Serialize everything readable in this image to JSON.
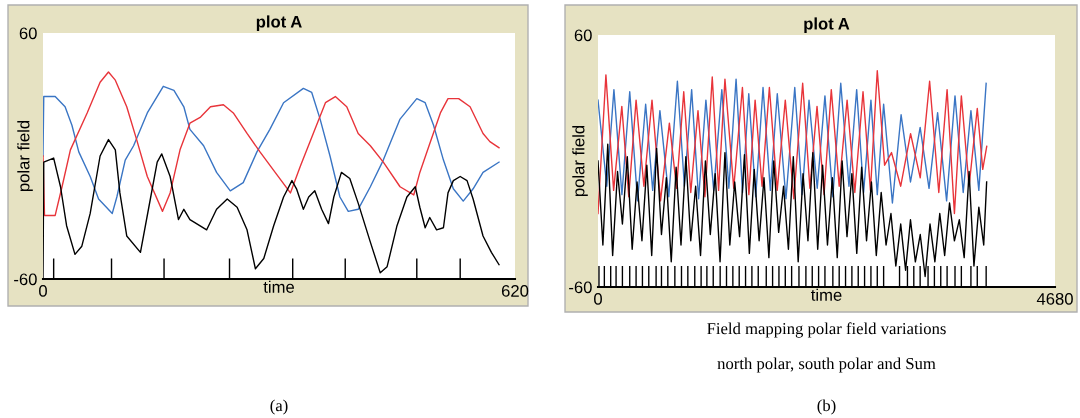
{
  "chart_data": [
    {
      "type": "line",
      "title": "plot A",
      "xlabel": "time",
      "ylabel": "polar field",
      "xlim": [
        0,
        620
      ],
      "ylim": [
        -60,
        60
      ],
      "xticks": [
        0,
        620
      ],
      "yticks": [
        -60,
        60
      ],
      "annotations": [
        "(a)"
      ],
      "series": [
        {
          "color": "#3a75c4",
          "x": [
            0,
            1,
            16,
            29,
            38,
            47,
            62,
            73,
            91,
            97,
            108,
            119,
            137,
            158,
            172,
            185,
            193,
            211,
            228,
            246,
            263,
            281,
            298,
            316,
            342,
            353,
            364,
            377,
            390,
            401,
            414,
            430,
            447,
            469,
            491,
            502,
            513,
            526,
            539,
            552,
            565,
            578,
            599
          ],
          "values": [
            0,
            29,
            29,
            24,
            15,
            2,
            -10,
            -21,
            -28,
            -20,
            -2,
            5,
            21,
            34,
            32,
            24,
            13,
            5,
            -8,
            -17,
            -13,
            2,
            13,
            26,
            33,
            31,
            18,
            0,
            -20,
            -27,
            -26,
            -15,
            -2,
            18,
            28,
            26,
            15,
            -2,
            -16,
            -22,
            -16,
            -8,
            -3
          ]
        },
        {
          "color": "#e8343a",
          "x": [
            0,
            2,
            16,
            25,
            36,
            58,
            75,
            86,
            95,
            110,
            123,
            137,
            157,
            167,
            180,
            193,
            207,
            220,
            237,
            250,
            268,
            285,
            303,
            325,
            338,
            355,
            371,
            384,
            399,
            414,
            430,
            447,
            469,
            487,
            495,
            508,
            522,
            532,
            546,
            561,
            578,
            587,
            599
          ],
          "values": [
            0,
            -29,
            -29,
            -15,
            3,
            21,
            36,
            41,
            37,
            24,
            8,
            -10,
            -27,
            -18,
            3,
            16,
            19,
            24,
            25,
            21,
            11,
            2,
            -7,
            -18,
            -5,
            11,
            26,
            29,
            24,
            11,
            5,
            -3,
            -15,
            -19,
            -8,
            6,
            21,
            28,
            28,
            24,
            11,
            7,
            4
          ]
        },
        {
          "color": "#000000",
          "x": [
            0,
            1,
            14,
            23,
            31,
            42,
            51,
            62,
            75,
            86,
            95,
            101,
            110,
            128,
            139,
            150,
            156,
            167,
            178,
            185,
            193,
            215,
            228,
            242,
            255,
            268,
            279,
            290,
            303,
            316,
            327,
            333,
            342,
            349,
            357,
            366,
            375,
            382,
            392,
            403,
            414,
            430,
            443,
            452,
            465,
            478,
            489,
            495,
            502,
            508,
            517,
            526,
            532,
            539,
            548,
            557,
            565,
            578,
            589,
            599
          ],
          "values": [
            -60,
            -3,
            -1,
            -15,
            -34,
            -48,
            -44,
            -28,
            0,
            8,
            3,
            -18,
            -39,
            -47,
            -25,
            -3,
            1,
            -10,
            -31,
            -26,
            -31,
            -36,
            -26,
            -21,
            -25,
            -36,
            -55,
            -50,
            -34,
            -20,
            -12,
            -16,
            -26,
            -20,
            -17,
            -26,
            -33,
            -20,
            -8,
            -11,
            -23,
            -42,
            -57,
            -54,
            -34,
            -20,
            -15,
            -25,
            -35,
            -30,
            -36,
            -35,
            -18,
            -12,
            -10,
            -12,
            -21,
            -39,
            -47,
            -53
          ]
        },
        {
          "type": "bar",
          "color": "#000000",
          "x": [
            14,
            90,
            159,
            245,
            328,
            397,
            491,
            548
          ],
          "values": [
            10,
            10,
            10,
            10,
            10,
            10,
            10,
            10
          ],
          "base": [
            -60,
            -60,
            -60,
            -60,
            -60,
            -60,
            -60,
            -60
          ]
        }
      ]
    },
    {
      "type": "line",
      "title": "plot A",
      "xlabel": "time",
      "ylabel": "polar field",
      "xlim": [
        0,
        4680
      ],
      "ylim": [
        -60,
        60
      ],
      "xticks": [
        0,
        4680
      ],
      "yticks": [
        -60,
        60
      ],
      "annotations": [
        "Field mapping polar field variations",
        "north polar, south polar and Sum",
        "(b)"
      ],
      "series": [
        {
          "color": "#3a75c4",
          "x": [
            0,
            90,
            163,
            245,
            325,
            405,
            488,
            560,
            634,
            725,
            813,
            885,
            959,
            1030,
            1105,
            1185,
            1268,
            1340,
            1414,
            1480,
            1544,
            1615,
            1690,
            1765,
            1836,
            1925,
            2015,
            2090,
            2161,
            2245,
            2324,
            2405,
            2486,
            2570,
            2649,
            2720,
            2795,
            2860,
            2925,
            3015,
            3104,
            3200,
            3299,
            3390,
            3478,
            3570,
            3656,
            3740,
            3819,
            3900,
            3975
          ],
          "values": [
            29,
            -12,
            34,
            -16,
            33,
            -19,
            27,
            -14,
            24,
            -17,
            38,
            -12,
            34,
            -18,
            29,
            -14,
            34,
            -13,
            39,
            -15,
            32,
            -17,
            35,
            -14,
            32,
            -18,
            35,
            -16,
            29,
            -13,
            31,
            -17,
            37,
            -12,
            34,
            -15,
            29,
            -16,
            27,
            -20,
            22,
            -10,
            16,
            -13,
            23,
            -19,
            31,
            -15,
            24,
            -14,
            37
          ]
        },
        {
          "color": "#e8343a",
          "x": [
            0,
            81,
            160,
            244,
            315,
            390,
            470,
            553,
            640,
            731,
            805,
            878,
            950,
            1024,
            1095,
            1170,
            1235,
            1300,
            1390,
            1479,
            1545,
            1609,
            1680,
            1755,
            1835,
            1918,
            2005,
            2096,
            2170,
            2243,
            2315,
            2389,
            2470,
            2551,
            2630,
            2714,
            2790,
            2860,
            2935,
            3006,
            3100,
            3201,
            3300,
            3396,
            3490,
            3575,
            3650,
            3721,
            3800,
            3884,
            3940,
            3981
          ],
          "values": [
            -25,
            41,
            -14,
            26,
            -17,
            29,
            -12,
            29,
            -19,
            18,
            -13,
            33,
            -15,
            24,
            -17,
            40,
            -14,
            39,
            -13,
            35,
            -16,
            29,
            -12,
            35,
            -14,
            29,
            -18,
            37,
            -13,
            26,
            -16,
            34,
            -12,
            29,
            -15,
            33,
            -14,
            43,
            -2,
            4,
            -12,
            13,
            -8,
            38,
            -15,
            34,
            -25,
            31,
            -12,
            25,
            -4,
            7
          ]
        },
        {
          "color": "#000000",
          "x": [
            0,
            50,
            100,
            150,
            200,
            250,
            300,
            350,
            400,
            450,
            500,
            550,
            600,
            650,
            700,
            750,
            800,
            850,
            900,
            950,
            1000,
            1050,
            1100,
            1150,
            1200,
            1250,
            1300,
            1350,
            1400,
            1450,
            1500,
            1550,
            1600,
            1650,
            1700,
            1750,
            1800,
            1850,
            1900,
            1950,
            2000,
            2050,
            2100,
            2150,
            2200,
            2250,
            2300,
            2350,
            2400,
            2450,
            2500,
            2550,
            2600,
            2650,
            2700,
            2750,
            2800,
            2850,
            2900,
            2950,
            3000,
            3050,
            3100,
            3150,
            3200,
            3250,
            3300,
            3350,
            3400,
            3450,
            3500,
            3550,
            3600,
            3650,
            3700,
            3750,
            3800,
            3850,
            3900,
            3950,
            3980
          ],
          "values": [
            0,
            -40,
            8,
            -45,
            -5,
            -30,
            2,
            -42,
            -10,
            -38,
            -2,
            -45,
            6,
            -35,
            -8,
            -48,
            -3,
            -40,
            2,
            -38,
            -12,
            -45,
            0,
            -35,
            -6,
            -48,
            4,
            -40,
            -10,
            -36,
            3,
            -44,
            -4,
            -38,
            -8,
            -46,
            0,
            -34,
            -12,
            -42,
            2,
            -48,
            -6,
            -38,
            4,
            -42,
            -2,
            -40,
            -8,
            -46,
            0,
            -36,
            -6,
            -44,
            -3,
            -38,
            -10,
            -45,
            -15,
            -40,
            -25,
            -50,
            -30,
            -52,
            -28,
            -48,
            -35,
            -55,
            -30,
            -48,
            -25,
            -45,
            -20,
            -38,
            -28,
            -46,
            -5,
            -50,
            -22,
            -40,
            -10
          ]
        },
        {
          "type": "bar",
          "color": "#000000",
          "x": [
            10,
            65,
            130,
            185,
            250,
            325,
            390,
            455,
            520,
            595,
            650,
            715,
            787,
            855,
            920,
            991,
            1056,
            1115,
            1180,
            1251,
            1316,
            1381,
            1446,
            1511,
            1576,
            1641,
            1723,
            1788,
            1853,
            1918,
            1983,
            2058,
            2129,
            2194,
            2259,
            2324,
            2405,
            2470,
            2535,
            2600,
            2665,
            2730,
            2795,
            2860,
            2925,
            3088,
            3169,
            3234,
            3299,
            3380,
            3445,
            3510,
            3575,
            3656,
            3721,
            3819,
            3884,
            3975
          ],
          "values": [
            10,
            10,
            10,
            10,
            10,
            10,
            10,
            10,
            10,
            10,
            10,
            10,
            10,
            10,
            10,
            10,
            10,
            10,
            10,
            10,
            10,
            10,
            10,
            10,
            10,
            10,
            10,
            10,
            10,
            10,
            10,
            10,
            10,
            10,
            10,
            10,
            10,
            10,
            10,
            10,
            10,
            10,
            10,
            10,
            10,
            10,
            10,
            10,
            10,
            10,
            10,
            10,
            10,
            10,
            10,
            10,
            10,
            10
          ],
          "base": [
            -60,
            -60,
            -60,
            -60,
            -60,
            -60,
            -60,
            -60,
            -60,
            -60,
            -60,
            -60,
            -60,
            -60,
            -60,
            -60,
            -60,
            -60,
            -60,
            -60,
            -60,
            -60,
            -60,
            -60,
            -60,
            -60,
            -60,
            -60,
            -60,
            -60,
            -60,
            -60,
            -60,
            -60,
            -60,
            -60,
            -60,
            -60,
            -60,
            -60,
            -60,
            -60,
            -60,
            -60,
            -60,
            -60,
            -60,
            -60,
            -60,
            -60,
            -60,
            -60,
            -60,
            -60,
            -60,
            -60,
            -60,
            -60
          ]
        }
      ]
    }
  ]
}
